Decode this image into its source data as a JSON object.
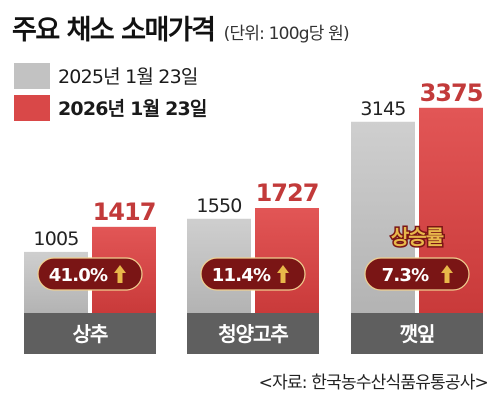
{
  "title": "주요 채소 소매가격",
  "unit": "(단위: 100g당 원)",
  "source": "<자료: 한국농수산식품유통공사>",
  "colors": {
    "y2025": "#c2c2c2",
    "y2026": "#d94848",
    "base": "#5f5f5f",
    "badge": "#7a1515",
    "value2026": "#c23a3a",
    "annotation": "#e8b84a"
  },
  "chart_data": {
    "type": "bar",
    "title": "주요 채소 소매가격",
    "unit": "(단위: 100g당 원)",
    "categories": [
      "상추",
      "청양고추",
      "깻잎"
    ],
    "series": [
      {
        "name": "2025년 1월 23일",
        "values": [
          1005,
          1550,
          3145
        ]
      },
      {
        "name": "2026년 1월 23일",
        "values": [
          1417,
          1727,
          3375
        ]
      }
    ],
    "growth_labels": [
      "41.0%",
      "11.4%",
      "7.3%"
    ],
    "growth_values": [
      41.0,
      11.4,
      7.3
    ],
    "annotation": "상승률",
    "ylim": [
      0,
      3500
    ],
    "grid": false,
    "legend": "top-left"
  }
}
